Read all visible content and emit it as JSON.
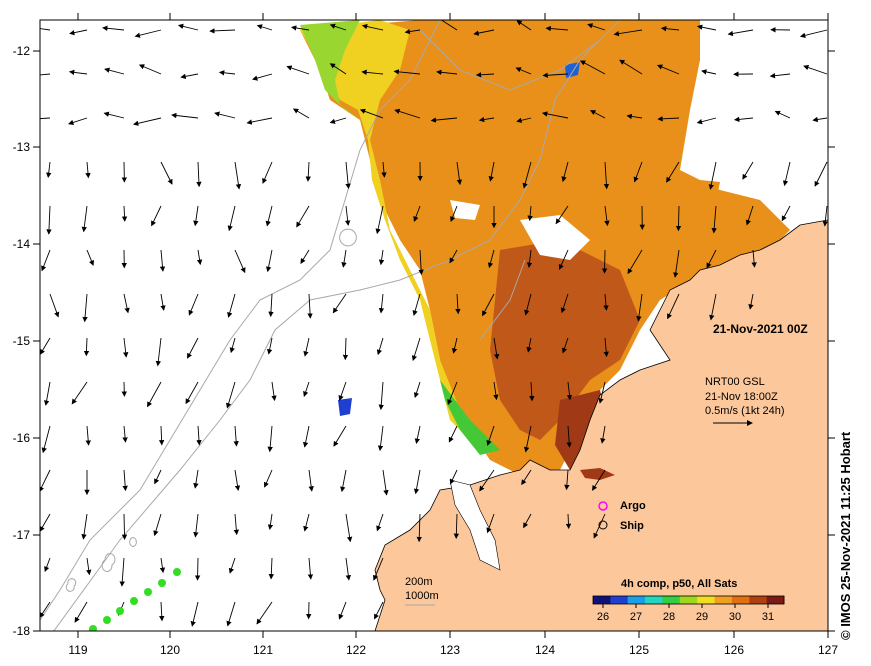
{
  "map": {
    "date_label": "21-Nov-2021 00Z",
    "x_ticks": [
      "119",
      "120",
      "121",
      "122",
      "123",
      "124",
      "125",
      "126",
      "127"
    ],
    "y_ticks": [
      "-12",
      "-13",
      "-14",
      "-15",
      "-16",
      "-17",
      "-18"
    ],
    "land_color": "#fcc89b",
    "coast_color": "#000000",
    "isobath_color": "#a8a8a8"
  },
  "current_info": {
    "line1": "NRT00 GSL",
    "line2": "21-Nov 18:00Z",
    "line3": "0.5m/s (1kt 24h)"
  },
  "legend": {
    "argo": "Argo",
    "ship": "Ship",
    "argo_color": "#ff00ff"
  },
  "isobaths": {
    "line1": "200m",
    "line2": "1000m"
  },
  "colorbar": {
    "title": "4h comp, p50, All Sats",
    "ticks": [
      "26",
      "27",
      "28",
      "29",
      "30",
      "31"
    ],
    "colors": [
      "#10107a",
      "#1f3fd0",
      "#1aa0e8",
      "#22d6c0",
      "#30d040",
      "#a0d820",
      "#f0e020",
      "#f0a020",
      "#e07010",
      "#b04010",
      "#7a1a14"
    ]
  },
  "credit": "© IMOS 25-Nov-2021 11:25 Hobart",
  "track_color": "#33dd22"
}
